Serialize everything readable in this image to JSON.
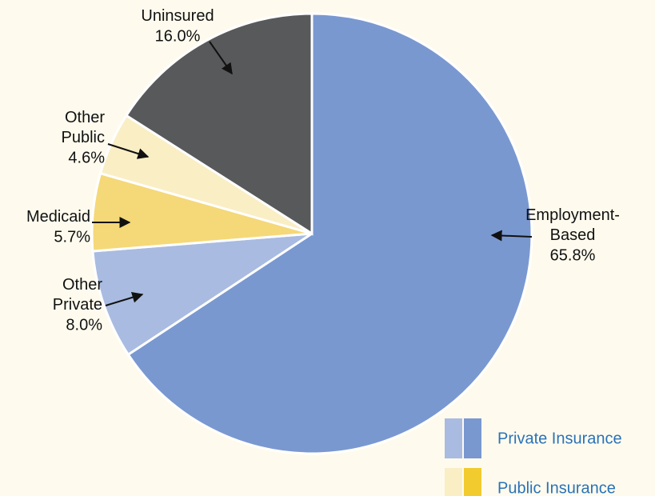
{
  "chart_data": {
    "type": "pie",
    "categories": [
      "Employment-\nBased",
      "Other\nPrivate",
      "Medicaid",
      "Other\nPublic",
      "Uninsured"
    ],
    "values": [
      65.8,
      8.0,
      5.7,
      4.6,
      16.0
    ],
    "value_labels": [
      "65.8%",
      "8.0%",
      "5.7%",
      "4.6%",
      "16.0%"
    ],
    "colors": [
      "#7a98d0",
      "#a9bbe0",
      "#f5d878",
      "#faeec5",
      "#58595b"
    ],
    "legend": [
      {
        "name": "Private Insurance",
        "colors": [
          "#a9bbe0",
          "#7a98d0"
        ]
      },
      {
        "name": "Public Insurance",
        "colors": [
          "#faeec5",
          "#f2cb2e"
        ]
      }
    ]
  }
}
